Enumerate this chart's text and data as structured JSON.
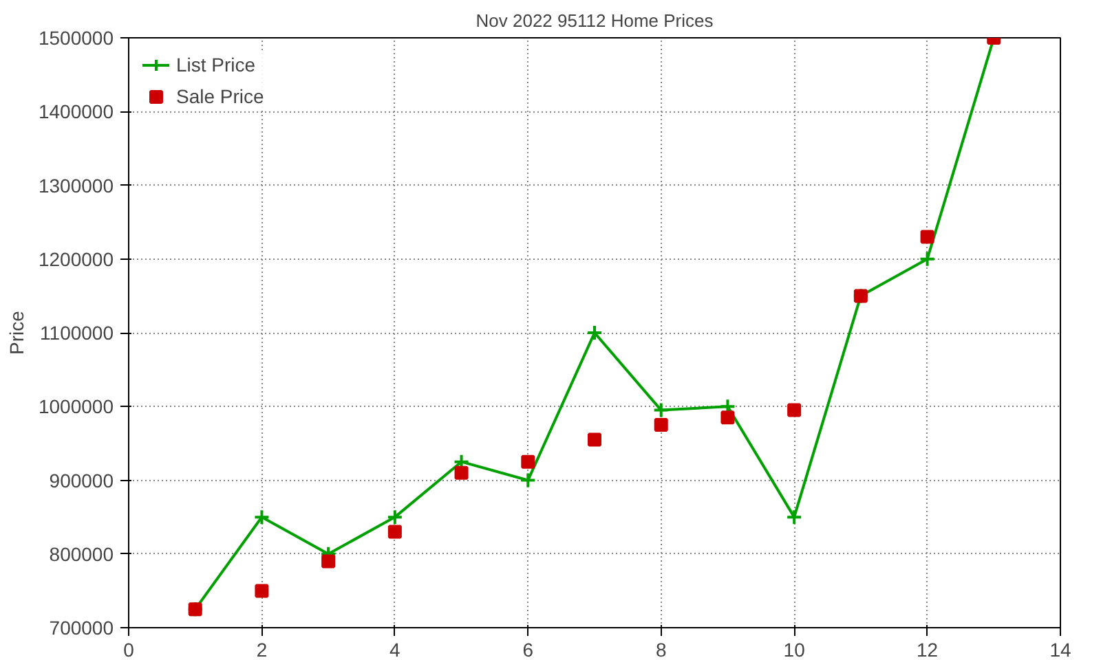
{
  "chart_data": {
    "type": "line",
    "title": "Nov 2022 95112 Home Prices",
    "ylabel": "Price",
    "x": [
      1,
      2,
      3,
      4,
      5,
      6,
      7,
      8,
      9,
      10,
      11,
      12,
      13
    ],
    "series": [
      {
        "name": "List Price",
        "marker": "cross",
        "color": "#00a000",
        "values": [
          725000,
          850000,
          800000,
          850000,
          925000,
          900000,
          1100000,
          995000,
          1000000,
          850000,
          1150000,
          1200000,
          1500000
        ]
      },
      {
        "name": "Sale Price",
        "type": "scatter",
        "marker": "square",
        "color": "#cc0000",
        "values": [
          725000,
          750000,
          790000,
          830000,
          910000,
          925000,
          955000,
          975000,
          985000,
          995000,
          1150000,
          1230000,
          1500000
        ]
      }
    ],
    "xlim": [
      0,
      14
    ],
    "xticks": [
      0,
      2,
      4,
      6,
      8,
      10,
      12,
      14
    ],
    "ylim": [
      700000,
      1500000
    ],
    "yticks": [
      700000,
      800000,
      900000,
      1000000,
      1100000,
      1200000,
      1300000,
      1400000,
      1500000
    ],
    "grid": true,
    "legend": "top left"
  }
}
